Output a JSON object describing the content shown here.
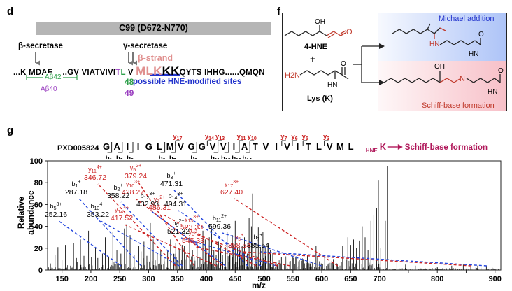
{
  "panel_d": {
    "label": "d",
    "bar_label": "C99 (D672-N770)",
    "beta_secretase": "β-secretase",
    "gamma_secretase": "γ-secretase",
    "beta_strand": "β-strand",
    "seq": {
      "s1": "...K M",
      "s2": "DAE",
      "s3": "......GV VIATVIVI",
      "s4": "T",
      "s5": "L",
      "s6": " V ",
      "s7": "MLK",
      "s8": "KK",
      "s9": "QYTS IHHG......QMQN"
    },
    "abeta42": "Aβ42",
    "abeta40": "Aβ40",
    "n48": "48",
    "n49": "49",
    "hne_sites": "possible HNE-modified sites"
  },
  "panel_f": {
    "label": "f",
    "michael": "Michael addition",
    "schiff": "Schiff-base formation",
    "hne": "4-HNE",
    "plus": "+",
    "lys": "Lys (K)",
    "oh": "OH",
    "o": "O",
    "h2n": "H2N",
    "hn": "HN",
    "n": "N"
  },
  "panel_g": {
    "label": "g",
    "dataset": "PXD005824",
    "peptide": [
      "G",
      "A",
      "I",
      "I",
      "G",
      "L",
      "M",
      "V",
      "G",
      "G",
      "V",
      "V",
      "I",
      "A",
      "T",
      "V",
      "I",
      "V",
      "I",
      "T",
      "L",
      "V",
      "M",
      "L"
    ],
    "hne_k": "HNE",
    "k": "K",
    "arrow_label": "Schiff-base formation",
    "y_ions_top": [
      "y17",
      "y14",
      "y13",
      "y11",
      "y10",
      "y7",
      "y6",
      "y5",
      "y3"
    ],
    "b_ions_bottom": [
      "b1",
      "b2",
      "b3",
      "b6",
      "b7",
      "b9",
      "b11",
      "b12",
      "b13",
      "b14"
    ]
  },
  "chart_data": {
    "type": "bar",
    "xlabel": "m/z",
    "ylabel": "Relative abundance",
    "xlim": [
      125,
      910
    ],
    "ylim": [
      0,
      100
    ],
    "x_ticks": [
      150,
      200,
      250,
      300,
      350,
      400,
      450,
      500,
      550,
      600,
      650,
      700,
      750,
      800,
      850,
      900
    ],
    "y_ticks": [
      0,
      20,
      40,
      60,
      80,
      100
    ],
    "annotations": [
      {
        "ion": "b5",
        "charge": "3+",
        "mz": 252.16,
        "value": "252.16",
        "color": "#000000"
      },
      {
        "ion": "b1",
        "charge": "+",
        "mz": 287.18,
        "value": "287.18",
        "color": "#000000"
      },
      {
        "ion": "y11",
        "charge": "4+",
        "mz": 346.72,
        "value": "346.72",
        "color": "#cc2222"
      },
      {
        "ion": "b13",
        "charge": "4+",
        "mz": 353.22,
        "value": "353.22",
        "color": "#000000"
      },
      {
        "ion": "b2",
        "charge": "+",
        "mz": 358.22,
        "value": "358.22",
        "color": "#000000"
      },
      {
        "ion": "y5",
        "charge": "2+",
        "mz": 379.24,
        "value": "379.24",
        "color": "#cc2222"
      },
      {
        "ion": "y14",
        "charge": "4+",
        "mz": 417.52,
        "value": "417.52",
        "color": "#cc2222"
      },
      {
        "ion": "y10",
        "charge": "3+",
        "mz": 428.27,
        "value": "428.27",
        "color": "#cc2222"
      },
      {
        "ion": "b12",
        "charge": "3+",
        "mz": 432.93,
        "value": "432.93",
        "color": "#000000"
      },
      {
        "ion": "b3",
        "charge": "+",
        "mz": 471.31,
        "value": "471.31",
        "color": "#000000"
      },
      {
        "ion": "y7",
        "charge": "2+",
        "mz": 486.31,
        "value": "486.31",
        "color": "#cc2222"
      },
      {
        "ion": "b14",
        "charge": "3+",
        "mz": 494.31,
        "value": "494.31",
        "color": "#000000"
      },
      {
        "ion": "b9",
        "charge": "2+",
        "mz": 521.32,
        "value": "521.32",
        "color": "#000000"
      },
      {
        "ion": "y13",
        "charge": "3+",
        "mz": 523.33,
        "value": "523.33",
        "color": "#cc2222"
      },
      {
        "ion": "y3",
        "charge": "+",
        "mz": 545.33,
        "value": "545.33",
        "color": "#cc2222"
      },
      {
        "ion": "b11",
        "charge": "2+",
        "mz": 599.36,
        "value": "599.36",
        "color": "#000000"
      },
      {
        "ion": "y17",
        "charge": "3+",
        "mz": 627.4,
        "value": "627.40",
        "color": "#cc2222"
      },
      {
        "ion": "y5",
        "charge": "+",
        "mz": 858.54,
        "value": "858.54",
        "color": "#cc2222"
      },
      {
        "ion": "b7",
        "charge": "+",
        "mz": 885.54,
        "value": "885.54",
        "color": "#000000"
      }
    ],
    "peaks": [
      [
        130,
        6
      ],
      [
        138,
        14
      ],
      [
        143,
        21
      ],
      [
        150,
        9
      ],
      [
        156,
        23
      ],
      [
        162,
        10
      ],
      [
        170,
        25
      ],
      [
        175,
        11
      ],
      [
        182,
        28
      ],
      [
        188,
        13
      ],
      [
        196,
        36
      ],
      [
        201,
        12
      ],
      [
        208,
        20
      ],
      [
        212,
        11
      ],
      [
        220,
        15
      ],
      [
        225,
        30
      ],
      [
        231,
        12
      ],
      [
        238,
        35
      ],
      [
        245,
        18
      ],
      [
        252,
        15
      ],
      [
        258,
        38
      ],
      [
        262,
        42
      ],
      [
        268,
        32
      ],
      [
        275,
        14
      ],
      [
        283,
        22
      ],
      [
        287,
        17
      ],
      [
        292,
        26
      ],
      [
        297,
        13
      ],
      [
        303,
        43
      ],
      [
        308,
        28
      ],
      [
        315,
        15
      ],
      [
        321,
        18
      ],
      [
        327,
        12
      ],
      [
        333,
        18
      ],
      [
        338,
        28
      ],
      [
        343,
        15
      ],
      [
        347,
        25
      ],
      [
        353,
        19
      ],
      [
        358,
        23
      ],
      [
        362,
        22
      ],
      [
        366,
        14
      ],
      [
        371,
        30
      ],
      [
        376,
        18
      ],
      [
        379,
        12
      ],
      [
        384,
        25
      ],
      [
        389,
        12
      ],
      [
        394,
        36
      ],
      [
        398,
        28
      ],
      [
        405,
        30
      ],
      [
        409,
        37
      ],
      [
        413,
        18
      ],
      [
        417,
        14
      ],
      [
        421,
        26
      ],
      [
        425,
        23
      ],
      [
        428,
        14
      ],
      [
        433,
        21
      ],
      [
        436,
        35
      ],
      [
        441,
        14
      ],
      [
        445,
        32
      ],
      [
        450,
        45
      ],
      [
        454,
        20
      ],
      [
        458,
        18
      ],
      [
        462,
        22
      ],
      [
        466,
        30
      ],
      [
        471,
        15
      ],
      [
        474,
        48
      ],
      [
        478,
        40
      ],
      [
        480,
        70
      ],
      [
        486,
        13
      ],
      [
        490,
        39
      ],
      [
        494,
        21
      ],
      [
        498,
        35
      ],
      [
        502,
        20
      ],
      [
        507,
        23
      ],
      [
        511,
        18
      ],
      [
        515,
        16
      ],
      [
        521,
        7
      ],
      [
        523,
        5
      ],
      [
        530,
        12
      ],
      [
        540,
        7
      ],
      [
        545,
        5
      ],
      [
        552,
        10
      ],
      [
        560,
        8
      ],
      [
        568,
        10
      ],
      [
        575,
        14
      ],
      [
        580,
        6
      ],
      [
        590,
        22
      ],
      [
        596,
        8
      ],
      [
        599,
        6
      ],
      [
        605,
        12
      ],
      [
        612,
        6
      ],
      [
        620,
        10
      ],
      [
        627,
        5
      ],
      [
        636,
        22
      ],
      [
        645,
        30
      ],
      [
        650,
        23
      ],
      [
        655,
        28
      ],
      [
        660,
        20
      ],
      [
        665,
        27
      ],
      [
        670,
        40
      ],
      [
        675,
        30
      ],
      [
        680,
        18
      ],
      [
        685,
        45
      ],
      [
        690,
        50
      ],
      [
        695,
        57
      ],
      [
        698,
        82
      ],
      [
        702,
        20
      ],
      [
        710,
        45
      ],
      [
        714,
        95
      ],
      [
        718,
        35
      ],
      [
        730,
        8
      ],
      [
        745,
        5
      ],
      [
        762,
        4
      ],
      [
        800,
        3
      ],
      [
        825,
        4
      ],
      [
        845,
        5
      ],
      [
        858,
        3
      ],
      [
        870,
        4
      ],
      [
        885,
        4
      ],
      [
        895,
        3
      ]
    ]
  }
}
